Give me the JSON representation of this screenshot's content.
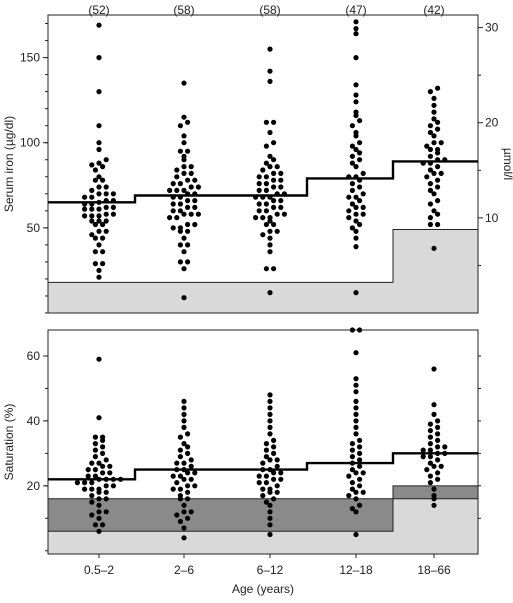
{
  "chart_data": [
    {
      "type": "scatter",
      "panel": "top",
      "ylabel": "Serum iron (µg/dl)",
      "y2label": "µmol/l",
      "ylim": [
        0,
        175
      ],
      "yticks": [
        50,
        100,
        150
      ],
      "y2ticks": [
        10,
        20,
        30
      ],
      "y2_factor": 5.587,
      "categories": [
        "0.5–2",
        "2–6",
        "6–12",
        "12–18",
        "18–66"
      ],
      "counts": [
        "(52)",
        "(58)",
        "(58)",
        "(47)",
        "(42)"
      ],
      "median": [
        65,
        69,
        69,
        79,
        89
      ],
      "lower_limit": [
        18,
        18,
        18,
        18,
        49
      ],
      "colors": {
        "dot": "#000000",
        "band_light": "#d9d9d9",
        "band_dark": "#8a8a8a"
      },
      "series": [
        {
          "values": [
            21,
            25,
            29,
            29,
            36,
            36,
            40,
            44,
            44,
            46,
            48,
            48,
            52,
            52,
            54,
            54,
            54,
            57,
            57,
            57,
            58,
            58,
            61,
            61,
            61,
            62,
            62,
            64,
            64,
            65,
            66,
            66,
            68,
            68,
            70,
            70,
            70,
            72,
            74,
            74,
            78,
            78,
            80,
            84,
            86,
            87,
            88,
            90,
            96,
            100,
            110,
            130,
            150,
            169
          ]
        },
        {
          "values": [
            9,
            26,
            30,
            30,
            36,
            40,
            40,
            44,
            48,
            48,
            50,
            50,
            52,
            52,
            56,
            56,
            58,
            58,
            58,
            60,
            60,
            62,
            62,
            64,
            64,
            66,
            66,
            68,
            68,
            70,
            70,
            72,
            72,
            72,
            74,
            74,
            76,
            76,
            78,
            78,
            80,
            82,
            82,
            84,
            86,
            86,
            90,
            92,
            95,
            95,
            100,
            104,
            110,
            112,
            115,
            135
          ]
        },
        {
          "values": [
            12,
            26,
            26,
            36,
            40,
            44,
            46,
            48,
            48,
            52,
            52,
            54,
            56,
            56,
            56,
            58,
            58,
            60,
            60,
            62,
            62,
            64,
            64,
            66,
            66,
            68,
            68,
            68,
            70,
            70,
            72,
            72,
            74,
            74,
            76,
            76,
            78,
            78,
            80,
            80,
            82,
            82,
            84,
            86,
            86,
            88,
            90,
            92,
            98,
            100,
            106,
            112,
            112,
            136,
            142,
            155
          ]
        },
        {
          "values": [
            12,
            39,
            44,
            48,
            50,
            52,
            54,
            56,
            58,
            58,
            60,
            62,
            62,
            64,
            66,
            68,
            68,
            70,
            72,
            74,
            76,
            78,
            80,
            80,
            82,
            86,
            88,
            90,
            92,
            94,
            96,
            98,
            100,
            104,
            106,
            110,
            113,
            116,
            118,
            124,
            128,
            134,
            150,
            164,
            167,
            171
          ]
        },
        {
          "values": [
            38,
            52,
            52,
            56,
            58,
            60,
            64,
            66,
            70,
            72,
            74,
            76,
            78,
            80,
            82,
            82,
            84,
            86,
            88,
            88,
            90,
            90,
            92,
            94,
            96,
            96,
            98,
            100,
            100,
            104,
            106,
            108,
            110,
            112,
            114,
            118,
            122,
            126,
            130,
            132
          ]
        }
      ]
    },
    {
      "type": "scatter",
      "panel": "bottom",
      "ylabel": "Saturation (%)",
      "xlabel": "Age (years)",
      "ylim": [
        -1,
        68
      ],
      "yticks": [
        20,
        40,
        60
      ],
      "categories": [
        "0.5–2",
        "2–6",
        "6–12",
        "12–18",
        "18–66"
      ],
      "median": [
        22,
        25,
        25,
        27,
        30
      ],
      "band_light_top": [
        6,
        6,
        6,
        6,
        16
      ],
      "band_dark_top": [
        16,
        16,
        16,
        16,
        20
      ],
      "series": [
        {
          "values": [
            6,
            8,
            8,
            10,
            11,
            12,
            12,
            14,
            15,
            16,
            16,
            17,
            18,
            18,
            19,
            19,
            19,
            20,
            20,
            21,
            21,
            21,
            22,
            22,
            22,
            22,
            23,
            23,
            24,
            24,
            25,
            25,
            26,
            26,
            27,
            27,
            28,
            29,
            30,
            31,
            32,
            33,
            34,
            35,
            35,
            41,
            59
          ]
        },
        {
          "values": [
            4,
            7,
            9,
            10,
            11,
            12,
            12,
            14,
            16,
            16,
            17,
            18,
            19,
            19,
            20,
            20,
            21,
            22,
            22,
            23,
            23,
            24,
            24,
            25,
            25,
            26,
            27,
            27,
            28,
            29,
            30,
            31,
            32,
            33,
            35,
            36,
            38,
            40,
            42,
            44,
            46
          ]
        },
        {
          "values": [
            5,
            8,
            10,
            12,
            14,
            15,
            16,
            17,
            18,
            18,
            19,
            19,
            20,
            21,
            21,
            22,
            22,
            23,
            23,
            24,
            24,
            25,
            25,
            26,
            27,
            28,
            28,
            29,
            30,
            31,
            32,
            33,
            34,
            36,
            38,
            40,
            42,
            44,
            46,
            48
          ]
        },
        {
          "values": [
            5,
            12,
            13,
            14,
            16,
            17,
            18,
            18,
            19,
            20,
            21,
            22,
            23,
            24,
            24,
            25,
            26,
            27,
            28,
            29,
            30,
            31,
            32,
            33,
            34,
            36,
            38,
            40,
            42,
            44,
            46,
            49,
            51,
            53,
            61,
            68,
            68
          ]
        },
        {
          "values": [
            14,
            16,
            17,
            19,
            21,
            22,
            23,
            24,
            25,
            26,
            26,
            27,
            28,
            29,
            29,
            30,
            30,
            31,
            31,
            32,
            32,
            33,
            34,
            35,
            36,
            37,
            38,
            39,
            40,
            42,
            45,
            56
          ]
        }
      ]
    }
  ]
}
